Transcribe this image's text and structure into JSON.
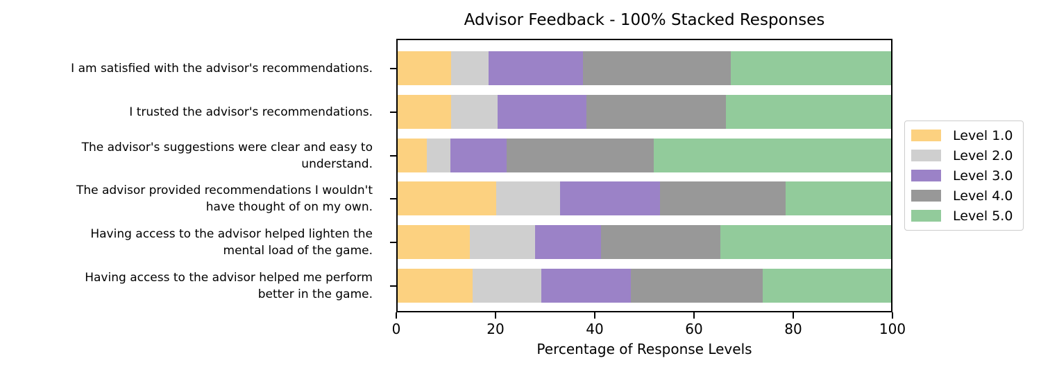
{
  "chart_data": {
    "type": "bar",
    "variant": "horizontal_100pct_stacked",
    "title": "Advisor Feedback - 100% Stacked Responses",
    "xlabel": "Percentage of Response Levels",
    "xlim": [
      0,
      100
    ],
    "xticks": [
      0,
      20,
      40,
      60,
      80,
      100
    ],
    "grid": false,
    "legend_position": "outside-center-right",
    "categories": [
      "I am satisfied with the advisor's recommendations.",
      "I trusted the advisor's recommendations.",
      "The advisor's suggestions were clear and easy to\nunderstand.",
      "The advisor provided recommendations I wouldn't\nhave thought of on my own.",
      "Having access to the advisor helped lighten the\nmental load of the game.",
      "Having access to the advisor helped me perform\nbetter in the game."
    ],
    "series": [
      {
        "name": "Level 1.0",
        "color": "#FCD180",
        "values": [
          11.1,
          11.0,
          6.2,
          20.2,
          14.8,
          15.4
        ]
      },
      {
        "name": "Level 2.0",
        "color": "#CFCFCF",
        "values": [
          7.5,
          9.4,
          4.7,
          12.8,
          13.2,
          13.8
        ]
      },
      {
        "name": "Level 3.0",
        "color": "#9B82C7",
        "values": [
          19.0,
          17.9,
          11.3,
          20.2,
          13.3,
          18.1
        ]
      },
      {
        "name": "Level 4.0",
        "color": "#989898",
        "values": [
          29.8,
          28.2,
          29.7,
          25.2,
          24.0,
          26.5
        ]
      },
      {
        "name": "Level 5.0",
        "color": "#92CB9B",
        "values": [
          32.6,
          33.5,
          48.1,
          21.6,
          34.7,
          26.2
        ]
      }
    ],
    "axis_color": "#000000"
  }
}
